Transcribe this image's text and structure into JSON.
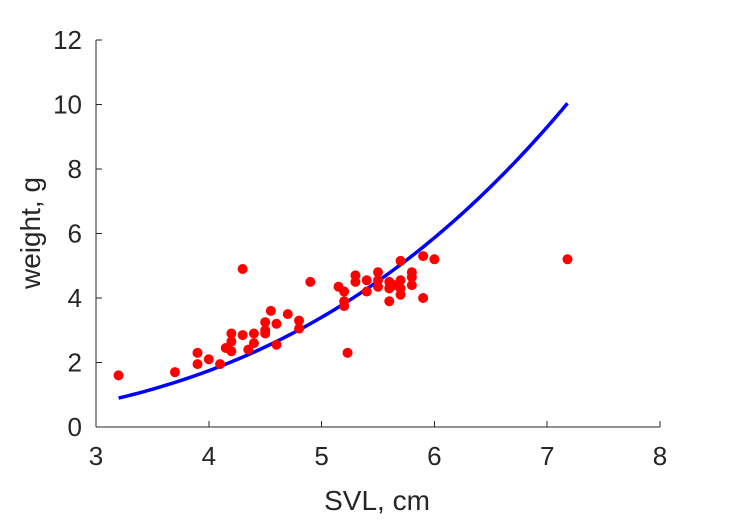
{
  "chart_data": {
    "type": "scatter",
    "title": "",
    "xlabel": "SVL, cm",
    "ylabel": "weight, g",
    "xlim": [
      3,
      8
    ],
    "ylim": [
      0,
      12
    ],
    "x_ticks": [
      3,
      4,
      5,
      6,
      7,
      8
    ],
    "y_ticks": [
      0,
      2,
      4,
      6,
      8,
      10,
      12
    ],
    "grid": false,
    "legend": "none",
    "series": [
      {
        "kind": "scatter",
        "color": "#ff0000",
        "points": [
          [
            3.2,
            1.6
          ],
          [
            3.7,
            1.7
          ],
          [
            3.9,
            2.3
          ],
          [
            3.9,
            1.95
          ],
          [
            4.0,
            2.1
          ],
          [
            4.1,
            1.95
          ],
          [
            4.15,
            2.45
          ],
          [
            4.2,
            2.9
          ],
          [
            4.2,
            2.65
          ],
          [
            4.2,
            2.35
          ],
          [
            4.3,
            2.85
          ],
          [
            4.3,
            4.9
          ],
          [
            4.35,
            2.4
          ],
          [
            4.4,
            2.9
          ],
          [
            4.4,
            2.6
          ],
          [
            4.5,
            3.25
          ],
          [
            4.5,
            3.0
          ],
          [
            4.5,
            2.9
          ],
          [
            4.55,
            3.6
          ],
          [
            4.6,
            3.2
          ],
          [
            4.6,
            2.55
          ],
          [
            4.7,
            3.5
          ],
          [
            4.8,
            3.3
          ],
          [
            4.8,
            3.05
          ],
          [
            4.9,
            4.5
          ],
          [
            5.15,
            4.35
          ],
          [
            5.2,
            4.2
          ],
          [
            5.2,
            3.9
          ],
          [
            5.2,
            3.75
          ],
          [
            5.23,
            2.3
          ],
          [
            5.3,
            4.7
          ],
          [
            5.3,
            4.5
          ],
          [
            5.4,
            4.55
          ],
          [
            5.4,
            4.2
          ],
          [
            5.5,
            4.8
          ],
          [
            5.5,
            4.55
          ],
          [
            5.5,
            4.35
          ],
          [
            5.6,
            4.5
          ],
          [
            5.6,
            4.3
          ],
          [
            5.6,
            3.9
          ],
          [
            5.65,
            4.4
          ],
          [
            5.7,
            5.15
          ],
          [
            5.7,
            4.55
          ],
          [
            5.7,
            4.3
          ],
          [
            5.7,
            4.1
          ],
          [
            5.8,
            4.8
          ],
          [
            5.8,
            4.65
          ],
          [
            5.8,
            4.4
          ],
          [
            5.9,
            5.3
          ],
          [
            5.9,
            4.0
          ],
          [
            6.0,
            5.2
          ],
          [
            7.18,
            5.2
          ]
        ]
      },
      {
        "kind": "line",
        "color": "#0000ff",
        "model": "power",
        "coefficient": 0.02766,
        "exponent": 2.99,
        "x_range": [
          3.2,
          7.18
        ]
      }
    ]
  }
}
